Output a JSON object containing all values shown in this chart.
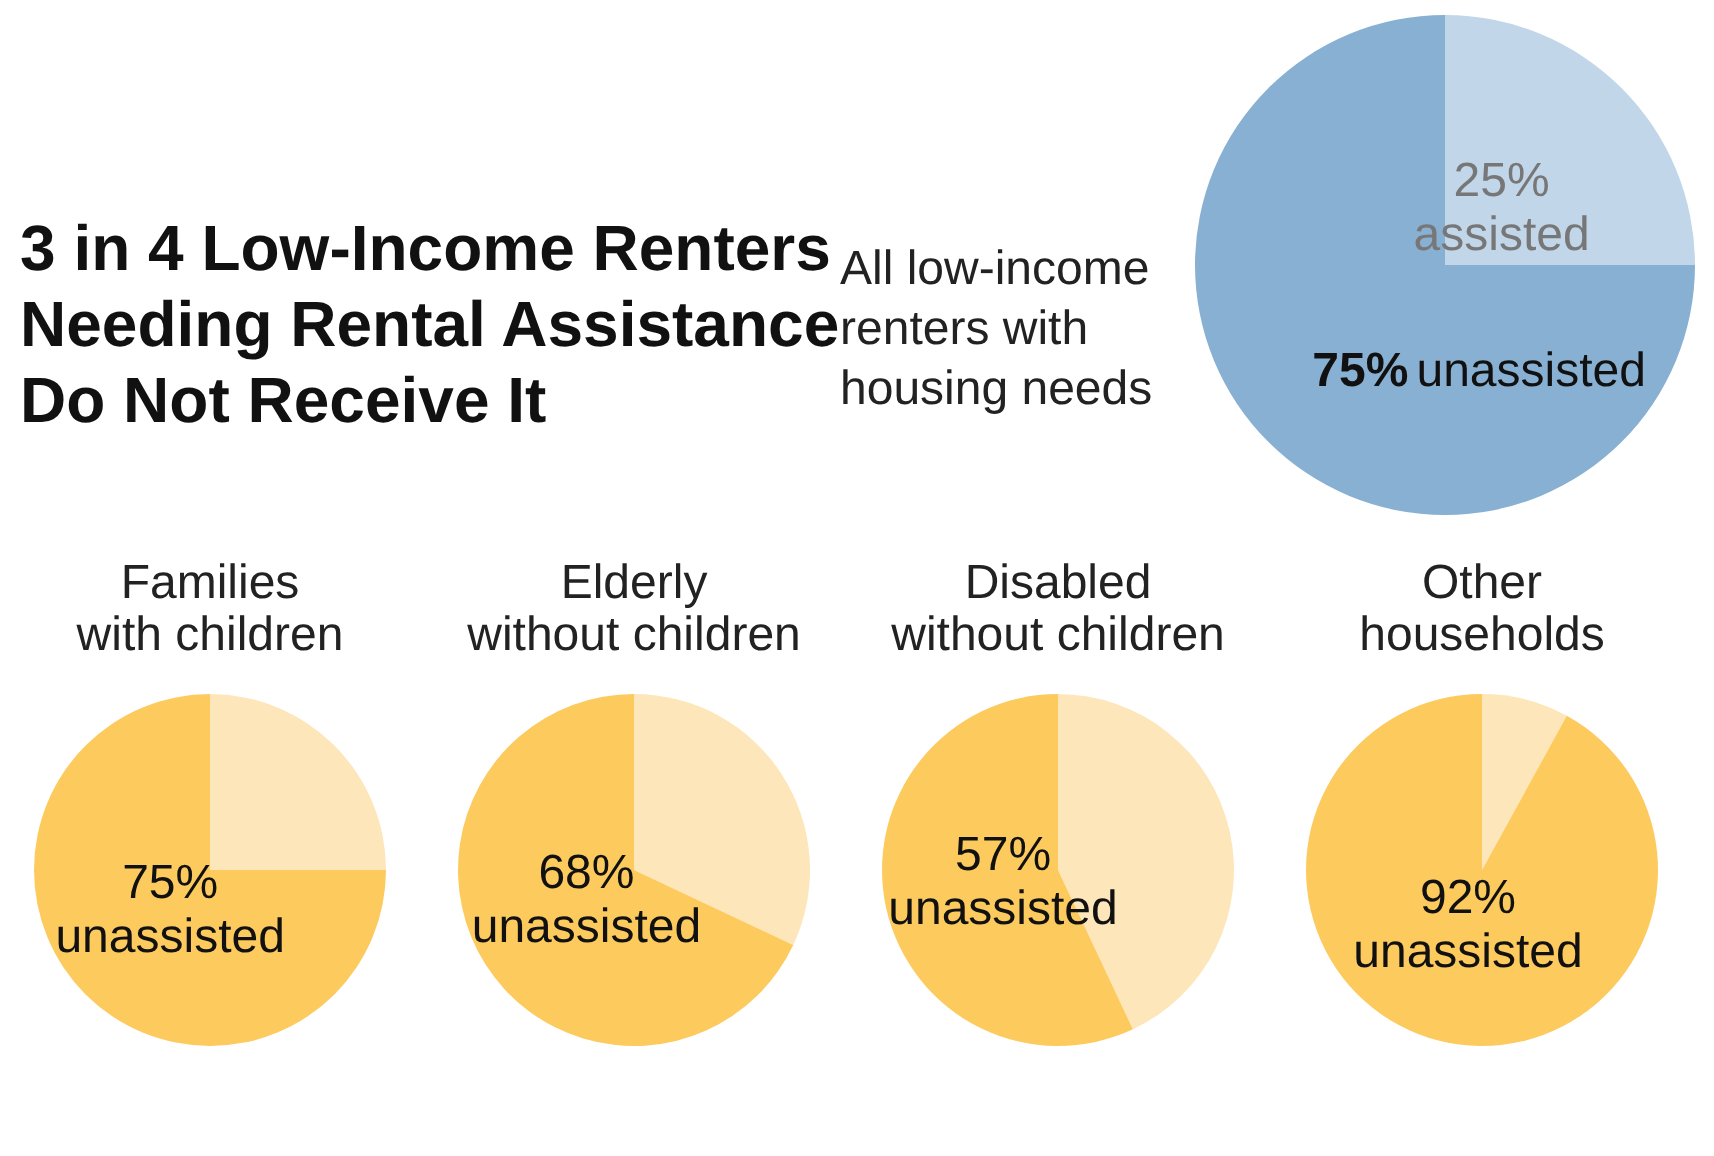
{
  "chart_data": [
    {
      "type": "pie",
      "title": "3 in 4 Low-Income Renters Needing Rental Assistance Do Not Receive It",
      "subtitle": "All low-income renters with housing needs",
      "categories": [
        "assisted",
        "unassisted"
      ],
      "values": [
        25,
        75
      ],
      "colors": [
        "#c2d6e9",
        "#88b0d3"
      ],
      "value_labels": [
        "25%",
        "75%"
      ]
    },
    {
      "type": "pie",
      "title": "Families with children",
      "categories": [
        null,
        "unassisted"
      ],
      "values": [
        25,
        75
      ],
      "colors": [
        "#fee6bb",
        "#fdca5e"
      ],
      "value_labels": [
        null,
        "75%"
      ]
    },
    {
      "type": "pie",
      "title": "Elderly without children",
      "categories": [
        null,
        "unassisted"
      ],
      "values": [
        32,
        68
      ],
      "colors": [
        "#fee6bb",
        "#fdca5e"
      ],
      "value_labels": [
        null,
        "68%"
      ]
    },
    {
      "type": "pie",
      "title": "Disabled without children",
      "categories": [
        null,
        "unassisted"
      ],
      "values": [
        43,
        57
      ],
      "colors": [
        "#fee6bb",
        "#fdca5e"
      ],
      "value_labels": [
        null,
        "57%"
      ]
    },
    {
      "type": "pie",
      "title": "Other households",
      "categories": [
        null,
        "unassisted"
      ],
      "values": [
        8,
        92
      ],
      "colors": [
        "#fee6bb",
        "#fdca5e"
      ],
      "value_labels": [
        null,
        "92%"
      ]
    }
  ]
}
